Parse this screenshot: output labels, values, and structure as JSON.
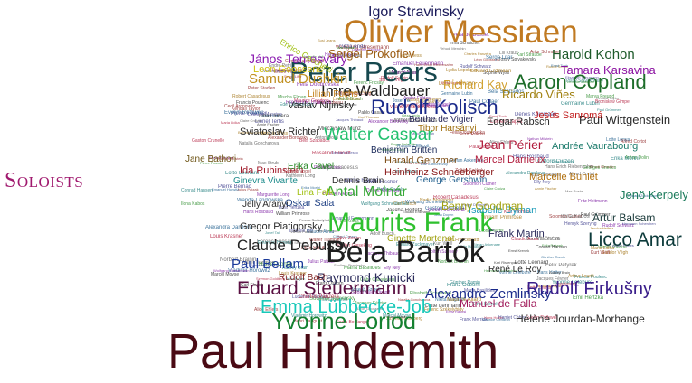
{
  "title": "Soloists",
  "colors": {
    "title": "#a0196e",
    "background": "#ffffff"
  },
  "words": [
    {
      "text": "Paul Hindemith",
      "color": "#4a0a14"
    },
    {
      "text": "Béla Bartók",
      "color": "#1e1e1e"
    },
    {
      "text": "Olivier Messiaen",
      "color": "#c07a22"
    },
    {
      "text": "Maurits Frank",
      "color": "#2ec02e"
    },
    {
      "text": "Peter Pears",
      "color": "#16484e"
    },
    {
      "text": "Yvonne Loriod",
      "color": "#148030"
    },
    {
      "text": "Eduard Steuermann",
      "color": "#5a1042"
    },
    {
      "text": "Licco Amar",
      "color": "#0c3a3a"
    },
    {
      "text": "Emma Lübbecke-Job",
      "color": "#18c8b8"
    },
    {
      "text": "Rudolf Firkušny",
      "color": "#3a1e8a"
    },
    {
      "text": "Rudolf Kolisch",
      "color": "#1a2a8a"
    },
    {
      "text": "Aaron Copland",
      "color": "#1e6e2a"
    },
    {
      "text": "Walter Caspar",
      "color": "#22c06e"
    },
    {
      "text": "Claude Debussy",
      "color": "#222222"
    },
    {
      "text": "Imre Waldbauer",
      "color": "#1e1e1e"
    },
    {
      "text": "Paul Bellam",
      "color": "#1a3a9a"
    },
    {
      "text": "Antal Molnár",
      "color": "#38a838"
    },
    {
      "text": "Alexandre Zemlinsky",
      "color": "#1a2a8a"
    },
    {
      "text": "Raymond Kunicki",
      "color": "#2a2a5a"
    },
    {
      "text": "Igor Stravinsky",
      "color": "#1a1a5a"
    },
    {
      "text": "Sergei Prokofiev",
      "color": "#9a5a10"
    },
    {
      "text": "Harold Kohon",
      "color": "#1e5a2a"
    },
    {
      "text": "Samuel Dushkin",
      "color": "#c09020"
    },
    {
      "text": "János Temesváry",
      "color": "#8a1ab0"
    },
    {
      "text": "Tamara Karsavina",
      "color": "#8a10a0"
    },
    {
      "text": "Richard Kay",
      "color": "#d0a030"
    },
    {
      "text": "Ricardo Viñes",
      "color": "#a08010"
    },
    {
      "text": "Paul Wittgenstein",
      "color": "#2a2a2a"
    },
    {
      "text": "Jesús Sanromá",
      "color": "#c01a1a"
    },
    {
      "text": "Edgar Rabsch",
      "color": "#2a2a2a"
    },
    {
      "text": "Jean Périer",
      "color": "#b01a3a"
    },
    {
      "text": "Marcel Darrieux",
      "color": "#b01a3a"
    },
    {
      "text": "Marcelle Bunlet",
      "color": "#b07010"
    },
    {
      "text": "Isabelle Byman",
      "color": "#1a9ab8"
    },
    {
      "text": "Benny Goodman",
      "color": "#a0a010"
    },
    {
      "text": "Jenö Kerpely",
      "color": "#1a7a5a"
    },
    {
      "text": "Artur Balsam",
      "color": "#1a3a3a"
    },
    {
      "text": "Gertrud Flügel",
      "color": "#2a2a3a"
    },
    {
      "text": "Ginette Martenot",
      "color": "#a0a010"
    },
    {
      "text": "Frank Martin",
      "color": "#2a2a5a"
    },
    {
      "text": "Manuel de Falla",
      "color": "#a01a5a"
    },
    {
      "text": "Hélène Jourdan-Morhange",
      "color": "#2a2a2a"
    },
    {
      "text": "René Le Roy",
      "color": "#2a2a2a"
    },
    {
      "text": "Harald Genzmer",
      "color": "#7a4a10"
    },
    {
      "text": "Heinheinz Schneeberger",
      "color": "#8a1a1a"
    },
    {
      "text": "Dennis Brain",
      "color": "#2a2a2a"
    },
    {
      "text": "Gregor Piatigorsky",
      "color": "#2a2a2a"
    },
    {
      "text": "Jelly Arányi",
      "color": "#2a2a2a"
    },
    {
      "text": "Oskar Sala",
      "color": "#2a4a8a"
    },
    {
      "text": "Rudolf Bach",
      "color": "#7a1a1a"
    },
    {
      "text": "Lina Falk",
      "color": "#a0c010"
    },
    {
      "text": "Ida Rubinstein",
      "color": "#a01a2a"
    },
    {
      "text": "Ginevra Vivante",
      "color": "#1a8a8a"
    },
    {
      "text": "Jane Bathori",
      "color": "#6a5010"
    },
    {
      "text": "Sviatoslav Richter",
      "color": "#2a2a2a"
    },
    {
      "text": "Vaslav Nijinsky",
      "color": "#2a2a2a"
    },
    {
      "text": "Berthe de Vigier",
      "color": "#2a2a5a"
    },
    {
      "text": "Tibor Harsányi",
      "color": "#a07010"
    },
    {
      "text": "Erika Cavel",
      "color": "#2a8a2a"
    },
    {
      "text": "George Gershwin",
      "color": "#1a5a8a"
    },
    {
      "text": "Benjamin Britten",
      "color": "#1a2a5a"
    },
    {
      "text": "Andrée Vaurabourg",
      "color": "#1a7a6a"
    },
    {
      "text": "Lillian Fuchs",
      "color": "#c07a10"
    },
    {
      "text": "Enrico Cecchetti",
      "color": "#a0c010"
    },
    {
      "text": "Leon Goossens",
      "color": "#d0c010"
    }
  ],
  "minor_words": [
    "Eduard Erdmann",
    "Ludwig Vogel",
    "Stefan Askenase",
    "Felix Petyrek",
    "Walter Gieseking",
    "Hans Rosbaud",
    "Lotte Leonard",
    "Max Strub",
    "Ernst Toch",
    "Emil Hertzka",
    "Carl Flesch",
    "Wolfgang Stresemann",
    "Josef Tal",
    "Gaby Casadesus",
    "Robert Casadesus",
    "Jacques Thibaud",
    "Pablo Casals",
    "Alfred Cortot",
    "Maurice Gendron",
    "Pierre Fournier",
    "Zino Francescatti",
    "Marguerite Long",
    "Yvonne Lefébure",
    "Lili Kraus",
    "Szymon Goldberg",
    "Emanuel Feuermann",
    "Paul Grümmer",
    "Walter Trampler",
    "Hans Hotter",
    "Elisabeth Schumann",
    "Lotte Lehmann",
    "Julius Patzak",
    "Erika Morini",
    "Adolf Busch",
    "Rudolf Serkin",
    "Edwin Fischer",
    "Wilhelm Backhaus",
    "Artur Schnabel",
    "Claudio Arrau",
    "Géza Anda",
    "Annie Fischer",
    "Zoltán Székely",
    "Ede Zathureczky",
    "Vilmos Palotai",
    "Sándor Végh",
    "Dénes Koromzay",
    "Ernst Krenek",
    "Kurt Weill",
    "Lotte Lenya",
    "Marya Freund",
    "Sophie Wyss",
    "Peter Stadlen",
    "Eduard Zuckmayer",
    "Ferenc Fricsay",
    "Louis Krasner",
    "Rudolf Schwarz",
    "Tossy Spivakovsky",
    "Yehudi Menuhin",
    "Joseph Szigeti",
    "Mischa Elman",
    "Jascha Heifetz",
    "Nathan Milstein",
    "Vladimir Horowitz",
    "Ilona Kabos",
    "Louis Kentner",
    "Andor Földes",
    "Ditta Pásztory",
    "Endre Petri",
    "Béla Szabados",
    "Mária Basilides",
    "Ferenc Székelyhidy",
    "Erzsi Rákosi",
    "Jean Doyen",
    "Jacques Février",
    "Nadia Boulanger",
    "Lucienne Radisse",
    "Marcel Moyse",
    "Louis Cahuzac",
    "Gaston Crunelle",
    "Roger Delmotte",
    "Maurice Allard",
    "Jean Hubeau",
    "Germaine Lubin",
    "Claire Croiza",
    "Charles Panzéra",
    "Pierre Bernac",
    "Francis Poulenc",
    "Henri Sauguet",
    "Paul Collaer",
    "Hermann Scherchen",
    "Karl Ristenpart",
    "Georg Kulenkampff",
    "Wolfgang Schneiderhan",
    "Max Rostal",
    "Bronisław Gimpel",
    "Henryk Szeryng",
    "Irma Schaichet",
    "Alice Ehlers",
    "Wanda Landowska",
    "Isabelle Nef",
    "Susi Jeans",
    "Fritz Heitmann",
    "Günther Ramin",
    "Karl Straube",
    "Kurt Thomas",
    "Elly Ney",
    "Conrad Hansen",
    "Hans Erich Riebensahm",
    "Rosalind Ellicott",
    "Harriet Cohen",
    "Myra Hess",
    "Solomon Cutner",
    "Clifford Curzon",
    "Kathleen Long",
    "Olive Zorian",
    "Frederick Thurston",
    "Aubrey Brain",
    "Léon Goossens",
    "Evelyn Rothwell",
    "Lionel Tertis",
    "William Primrose",
    "Cecil Aronowitz",
    "Emanuel Hurwitz",
    "Norbert Brainin",
    "Maria Lidka",
    "Frank Merrick",
    "Franz Osborn",
    "Kendall Taylor",
    "Lucien Capet",
    "Georges Enesco",
    "Mieczysław Munz",
    "Alexander Borovsky",
    "Nikita Magaloff",
    "Soulima Stravinsky",
    "Arthur Lourié",
    "Vera de Bosset",
    "Lina Llubera",
    "Natalia Goncharova",
    "Serge Lifar",
    "Léonide Massine",
    "Lydia Lopokova",
    "Felia Doubrovska",
    "Alexandra Danilova",
    "Anton Dolin"
  ]
}
